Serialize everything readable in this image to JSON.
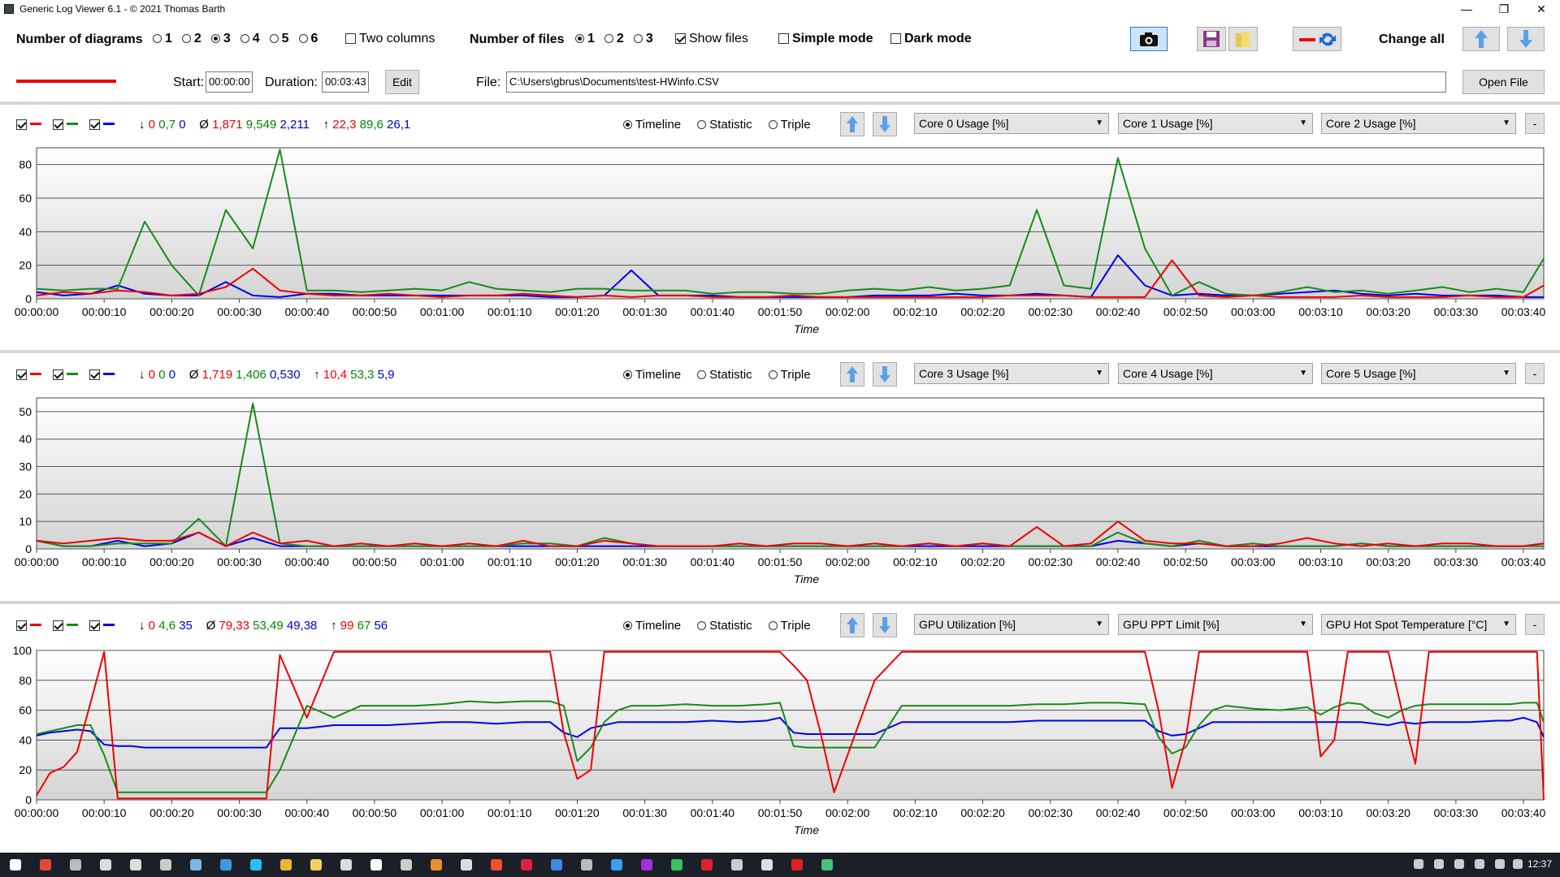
{
  "window": {
    "title": "Generic Log Viewer 6.1 - © 2021 Thomas Barth"
  },
  "toolbar": {
    "num_diagrams_label": "Number of diagrams",
    "diagram_options": [
      "1",
      "2",
      "3",
      "4",
      "5",
      "6"
    ],
    "diagram_selected": "3",
    "two_columns_label": "Two columns",
    "num_files_label": "Number of files",
    "file_options": [
      "1",
      "2",
      "3"
    ],
    "file_selected": "1",
    "show_files_label": "Show files",
    "simple_mode_label": "Simple mode",
    "dark_mode_label": "Dark mode",
    "change_all_label": "Change all"
  },
  "filebar": {
    "start_label": "Start:",
    "start_value": "00:00:00",
    "duration_label": "Duration:",
    "duration_value": "00:03:43",
    "edit_label": "Edit",
    "file_label": "File:",
    "file_path": "C:\\Users\\gbrus\\Documents\\test-HWinfo.CSV",
    "open_file_label": "Open File"
  },
  "colors": {
    "red": "#ee0000",
    "green": "#1a8a1a",
    "blue": "#0000ee"
  },
  "mode_labels": {
    "timeline": "Timeline",
    "statistic": "Statistic",
    "triple": "Triple"
  },
  "x_axis_label": "Time",
  "x_ticks": [
    "00:00:00",
    "00:00:10",
    "00:00:20",
    "00:00:30",
    "00:00:40",
    "00:00:50",
    "00:01:00",
    "00:01:10",
    "00:01:20",
    "00:01:30",
    "00:01:40",
    "00:01:50",
    "00:02:00",
    "00:02:10",
    "00:02:20",
    "00:02:30",
    "00:02:40",
    "00:02:50",
    "00:03:00",
    "00:03:10",
    "00:03:20",
    "00:03:30",
    "00:03:40"
  ],
  "diagrams": [
    {
      "min": [
        "0",
        "0,7",
        "0"
      ],
      "avg": [
        "1,871",
        "9,549",
        "2,211"
      ],
      "max": [
        "22,3",
        "89,6",
        "26,1"
      ],
      "selectors": [
        "Core 0 Usage [%]",
        "Core 1 Usage [%]",
        "Core 2 Usage [%]"
      ],
      "yticks": [
        "80",
        "60",
        "40",
        "20",
        "0"
      ]
    },
    {
      "min": [
        "0",
        "0",
        "0"
      ],
      "avg": [
        "1,719",
        "1,406",
        "0,530"
      ],
      "max": [
        "10,4",
        "53,3",
        "5,9"
      ],
      "selectors": [
        "Core 3 Usage [%]",
        "Core 4 Usage [%]",
        "Core 5 Usage [%]"
      ],
      "yticks": [
        "50",
        "40",
        "30",
        "20",
        "10",
        "0"
      ]
    },
    {
      "min": [
        "0",
        "4,6",
        "35"
      ],
      "avg": [
        "79,33",
        "53,49",
        "49,38"
      ],
      "max": [
        "99",
        "67",
        "56"
      ],
      "selectors": [
        "GPU Utilization [%]",
        "GPU PPT Limit [%]",
        "GPU Hot Spot Temperature [°C]"
      ],
      "yticks": [
        "100",
        "80",
        "60",
        "40",
        "20",
        "0"
      ]
    }
  ],
  "taskbar": {
    "clock": "12:37"
  },
  "chart_data": [
    {
      "type": "line",
      "xlabel": "Time",
      "ylabel": "",
      "xlim": [
        0,
        223
      ],
      "ylim": [
        0,
        90
      ],
      "x": [
        0,
        4,
        8,
        12,
        16,
        20,
        24,
        28,
        32,
        36,
        40,
        44,
        48,
        52,
        56,
        60,
        64,
        68,
        72,
        76,
        80,
        84,
        88,
        92,
        96,
        100,
        104,
        108,
        112,
        116,
        120,
        124,
        128,
        132,
        136,
        140,
        144,
        148,
        152,
        156,
        160,
        164,
        168,
        172,
        176,
        180,
        184,
        188,
        192,
        196,
        200,
        204,
        208,
        212,
        216,
        220,
        223
      ],
      "series": [
        {
          "name": "Core 0 Usage [%]",
          "values": [
            2,
            4,
            3,
            5,
            4,
            2,
            3,
            7,
            18,
            5,
            3,
            2,
            2,
            3,
            2,
            1,
            2,
            2,
            3,
            2,
            1,
            2,
            1,
            2,
            2,
            1,
            1,
            1,
            2,
            1,
            1,
            1,
            1,
            1,
            1,
            1,
            2,
            2,
            2,
            1,
            1,
            1,
            23,
            2,
            1,
            2,
            1,
            1,
            1,
            2,
            1,
            1,
            1,
            2,
            1,
            1,
            8
          ]
        },
        {
          "name": "Core 1 Usage [%]",
          "values": [
            6,
            5,
            6,
            6,
            46,
            20,
            2,
            53,
            30,
            89,
            5,
            5,
            4,
            5,
            6,
            5,
            10,
            6,
            5,
            4,
            6,
            6,
            5,
            5,
            5,
            3,
            4,
            4,
            3,
            3,
            5,
            6,
            5,
            7,
            5,
            6,
            8,
            53,
            8,
            6,
            84,
            30,
            2,
            10,
            3,
            2,
            4,
            7,
            4,
            5,
            3,
            5,
            7,
            4,
            6,
            4,
            24
          ]
        },
        {
          "name": "Core 2 Usage [%]",
          "values": [
            4,
            2,
            3,
            8,
            3,
            2,
            2,
            10,
            2,
            1,
            3,
            3,
            2,
            2,
            2,
            2,
            2,
            2,
            2,
            1,
            1,
            2,
            17,
            2,
            2,
            2,
            1,
            1,
            1,
            1,
            1,
            2,
            2,
            2,
            3,
            2,
            2,
            3,
            2,
            1,
            26,
            8,
            2,
            3,
            2,
            2,
            3,
            4,
            5,
            3,
            2,
            3,
            2,
            2,
            2,
            1,
            1
          ]
        }
      ]
    },
    {
      "type": "line",
      "xlabel": "Time",
      "ylabel": "",
      "xlim": [
        0,
        223
      ],
      "ylim": [
        0,
        55
      ],
      "x": [
        0,
        4,
        8,
        12,
        16,
        20,
        24,
        28,
        32,
        36,
        40,
        44,
        48,
        52,
        56,
        60,
        64,
        68,
        72,
        76,
        80,
        84,
        88,
        92,
        96,
        100,
        104,
        108,
        112,
        116,
        120,
        124,
        128,
        132,
        136,
        140,
        144,
        148,
        152,
        156,
        160,
        164,
        168,
        172,
        176,
        180,
        184,
        188,
        192,
        196,
        200,
        204,
        208,
        212,
        216,
        220,
        223
      ],
      "series": [
        {
          "name": "Core 3 Usage [%]",
          "values": [
            3,
            2,
            3,
            4,
            3,
            3,
            6,
            1,
            6,
            2,
            3,
            1,
            2,
            1,
            2,
            1,
            2,
            1,
            3,
            1,
            1,
            3,
            2,
            1,
            1,
            1,
            2,
            1,
            2,
            2,
            1,
            2,
            1,
            2,
            1,
            2,
            1,
            8,
            1,
            2,
            10,
            3,
            2,
            2,
            1,
            1,
            2,
            4,
            2,
            1,
            2,
            1,
            2,
            2,
            1,
            1,
            2
          ]
        },
        {
          "name": "Core 4 Usage [%]",
          "values": [
            3,
            1,
            1,
            2,
            2,
            2,
            11,
            1,
            53,
            2,
            1,
            1,
            1,
            1,
            1,
            1,
            1,
            1,
            2,
            2,
            1,
            4,
            2,
            1,
            1,
            1,
            1,
            1,
            1,
            1,
            1,
            1,
            1,
            2,
            1,
            2,
            1,
            1,
            1,
            1,
            6,
            2,
            1,
            3,
            1,
            2,
            1,
            1,
            1,
            2,
            1,
            1,
            1,
            1,
            1,
            1,
            1
          ]
        },
        {
          "name": "Core 5 Usage [%]",
          "values": [
            3,
            1,
            1,
            3,
            1,
            2,
            6,
            1,
            4,
            1,
            1,
            1,
            1,
            1,
            1,
            1,
            1,
            1,
            1,
            1,
            1,
            1,
            1,
            1,
            1,
            1,
            1,
            1,
            1,
            1,
            1,
            1,
            1,
            1,
            1,
            1,
            1,
            1,
            1,
            1,
            3,
            2,
            1,
            2,
            1,
            1,
            1,
            1,
            1,
            2,
            1,
            1,
            1,
            1,
            1,
            1,
            2
          ]
        }
      ]
    },
    {
      "type": "line",
      "xlabel": "Time",
      "ylabel": "",
      "xlim": [
        0,
        223
      ],
      "ylim": [
        0,
        100
      ],
      "x": [
        0,
        2,
        4,
        6,
        8,
        10,
        12,
        14,
        16,
        18,
        20,
        22,
        24,
        26,
        28,
        30,
        32,
        34,
        36,
        40,
        44,
        48,
        52,
        56,
        60,
        64,
        68,
        72,
        74,
        76,
        78,
        80,
        82,
        84,
        86,
        88,
        92,
        96,
        100,
        104,
        108,
        110,
        112,
        114,
        116,
        118,
        120,
        124,
        128,
        132,
        136,
        140,
        144,
        148,
        152,
        156,
        160,
        164,
        166,
        168,
        170,
        172,
        174,
        176,
        180,
        184,
        188,
        190,
        192,
        194,
        196,
        198,
        200,
        202,
        204,
        206,
        208,
        212,
        216,
        218,
        220,
        222,
        223
      ],
      "series": [
        {
          "name": "GPU Utilization [%]",
          "values": [
            3,
            18,
            22,
            32,
            65,
            99,
            1,
            1,
            1,
            1,
            1,
            1,
            1,
            1,
            1,
            1,
            1,
            1,
            97,
            55,
            99,
            99,
            99,
            99,
            99,
            99,
            99,
            99,
            99,
            99,
            45,
            14,
            20,
            99,
            99,
            99,
            99,
            99,
            99,
            99,
            99,
            99,
            90,
            80,
            45,
            5,
            30,
            80,
            99,
            99,
            99,
            99,
            99,
            99,
            99,
            99,
            99,
            99,
            60,
            8,
            40,
            99,
            99,
            99,
            99,
            99,
            99,
            29,
            40,
            99,
            99,
            99,
            99,
            60,
            24,
            99,
            99,
            99,
            99,
            99,
            99,
            99,
            0
          ]
        },
        {
          "name": "GPU PPT Limit [%]",
          "values": [
            44,
            46,
            48,
            50,
            50,
            30,
            5,
            5,
            5,
            5,
            5,
            5,
            5,
            5,
            5,
            5,
            5,
            5,
            20,
            63,
            55,
            63,
            63,
            63,
            64,
            66,
            65,
            66,
            66,
            66,
            63,
            26,
            35,
            52,
            60,
            63,
            63,
            64,
            63,
            63,
            64,
            65,
            36,
            35,
            35,
            35,
            35,
            35,
            63,
            63,
            63,
            63,
            63,
            64,
            64,
            65,
            65,
            64,
            42,
            31,
            35,
            50,
            60,
            63,
            61,
            60,
            62,
            57,
            62,
            65,
            64,
            58,
            55,
            60,
            63,
            64,
            64,
            64,
            64,
            64,
            65,
            65,
            52
          ]
        },
        {
          "name": "GPU Hot Spot Temperature [°C]",
          "values": [
            43,
            45,
            46,
            47,
            46,
            37,
            36,
            36,
            35,
            35,
            35,
            35,
            35,
            35,
            35,
            35,
            35,
            35,
            48,
            48,
            50,
            50,
            50,
            51,
            52,
            52,
            51,
            52,
            52,
            52,
            45,
            42,
            48,
            50,
            52,
            52,
            52,
            52,
            53,
            52,
            53,
            55,
            45,
            44,
            44,
            44,
            44,
            44,
            52,
            52,
            52,
            52,
            52,
            53,
            53,
            53,
            53,
            53,
            46,
            43,
            44,
            48,
            52,
            52,
            52,
            52,
            52,
            52,
            52,
            52,
            52,
            51,
            50,
            52,
            51,
            52,
            52,
            52,
            53,
            53,
            55,
            52,
            42
          ]
        }
      ]
    }
  ]
}
